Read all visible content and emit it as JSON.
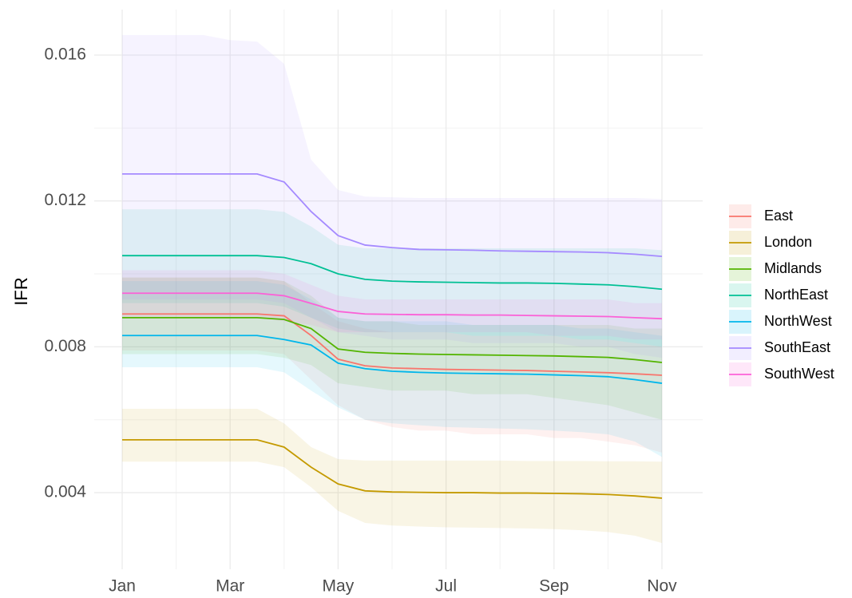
{
  "chart_data": {
    "type": "line",
    "ylabel": "IFR",
    "categories": [
      "Jan",
      null,
      null,
      null,
      "Mar",
      null,
      null,
      null,
      "May",
      null,
      null,
      null,
      "Jul",
      null,
      null,
      null,
      "Sep",
      null,
      null,
      null,
      "Nov"
    ],
    "ylim": [
      0.0019,
      0.0167
    ],
    "yticks": [
      0.004,
      0.008,
      0.012,
      0.016
    ],
    "minor_yticks": [
      0.006,
      0.01,
      0.014
    ],
    "grid": true,
    "legend": "right",
    "series": [
      {
        "name": "East",
        "color": "#F8766D",
        "values": [
          0.0089,
          0.0089,
          0.0089,
          0.0089,
          0.0089,
          0.0089,
          0.00885,
          0.00831,
          0.00766,
          0.00748,
          0.00742,
          0.0074,
          0.00738,
          0.00737,
          0.00736,
          0.00735,
          0.00733,
          0.00731,
          0.00729,
          0.00726,
          0.00722
        ],
        "upper": [
          0.0099,
          0.0099,
          0.0099,
          0.0099,
          0.0099,
          0.0099,
          0.0098,
          0.0092,
          0.0087,
          0.0085,
          0.0084,
          0.0084,
          0.0084,
          0.0083,
          0.0083,
          0.0083,
          0.0083,
          0.0082,
          0.0082,
          0.0081,
          0.008
        ],
        "lower": [
          0.0079,
          0.0079,
          0.0079,
          0.0079,
          0.0079,
          0.0079,
          0.0078,
          0.0071,
          0.0064,
          0.006,
          0.0058,
          0.0057,
          0.0057,
          0.0056,
          0.0056,
          0.0056,
          0.0055,
          0.0055,
          0.0054,
          0.0053,
          0.0051
        ]
      },
      {
        "name": "London",
        "color": "#C49A00",
        "values": [
          0.00545,
          0.00545,
          0.00545,
          0.00545,
          0.00545,
          0.00545,
          0.00525,
          0.0047,
          0.00424,
          0.00405,
          0.00402,
          0.00401,
          0.004,
          0.004,
          0.00399,
          0.00399,
          0.00398,
          0.00397,
          0.00395,
          0.00391,
          0.00385
        ],
        "upper": [
          0.0063,
          0.0063,
          0.0063,
          0.0063,
          0.0063,
          0.0063,
          0.0059,
          0.00525,
          0.00492,
          0.00488,
          0.00488,
          0.00488,
          0.00488,
          0.00488,
          0.00488,
          0.00487,
          0.00487,
          0.00487,
          0.00486,
          0.00486,
          0.00485
        ],
        "lower": [
          0.00485,
          0.00485,
          0.00485,
          0.00485,
          0.00485,
          0.00485,
          0.0047,
          0.00415,
          0.0035,
          0.00317,
          0.0031,
          0.00307,
          0.00305,
          0.00304,
          0.00303,
          0.00302,
          0.003,
          0.00297,
          0.00292,
          0.00282,
          0.00262
        ]
      },
      {
        "name": "Midlands",
        "color": "#53B400",
        "values": [
          0.0088,
          0.0088,
          0.0088,
          0.0088,
          0.0088,
          0.0088,
          0.00875,
          0.0085,
          0.00794,
          0.00785,
          0.00782,
          0.0078,
          0.00779,
          0.00778,
          0.00777,
          0.00776,
          0.00775,
          0.00773,
          0.00771,
          0.00765,
          0.00757
        ],
        "upper": [
          0.0099,
          0.0099,
          0.0099,
          0.0099,
          0.0099,
          0.0099,
          0.0098,
          0.0094,
          0.0088,
          0.0087,
          0.0087,
          0.0086,
          0.0086,
          0.0086,
          0.0086,
          0.0086,
          0.0086,
          0.0086,
          0.0086,
          0.0085,
          0.0085
        ],
        "lower": [
          0.0078,
          0.0078,
          0.0078,
          0.0078,
          0.0078,
          0.0078,
          0.0077,
          0.0075,
          0.007,
          0.0069,
          0.0068,
          0.0068,
          0.0068,
          0.0067,
          0.0067,
          0.0067,
          0.0066,
          0.0065,
          0.0064,
          0.0062,
          0.006
        ]
      },
      {
        "name": "NorthEast",
        "color": "#00C094",
        "values": [
          0.0105,
          0.0105,
          0.0105,
          0.0105,
          0.0105,
          0.0105,
          0.01045,
          0.01028,
          0.01,
          0.00985,
          0.0098,
          0.00978,
          0.00977,
          0.00976,
          0.00975,
          0.00975,
          0.00974,
          0.00972,
          0.0097,
          0.00965,
          0.00958
        ],
        "upper": [
          0.01177,
          0.01177,
          0.01177,
          0.01177,
          0.01177,
          0.01177,
          0.0117,
          0.0113,
          0.0108,
          0.0107,
          0.0107,
          0.0107,
          0.0107,
          0.0107,
          0.0107,
          0.0107,
          0.0107,
          0.0107,
          0.0107,
          0.0107,
          0.01065
        ],
        "lower": [
          0.0092,
          0.0092,
          0.0092,
          0.0092,
          0.0092,
          0.0092,
          0.0091,
          0.0088,
          0.0085,
          0.0084,
          0.0084,
          0.0084,
          0.0084,
          0.0083,
          0.0083,
          0.0083,
          0.0083,
          0.0082,
          0.0082,
          0.0081,
          0.008
        ]
      },
      {
        "name": "NorthWest",
        "color": "#00B6EB",
        "values": [
          0.00831,
          0.00831,
          0.00831,
          0.00831,
          0.00831,
          0.00831,
          0.0082,
          0.00805,
          0.00755,
          0.0074,
          0.00733,
          0.0073,
          0.00728,
          0.00727,
          0.00726,
          0.00725,
          0.00723,
          0.00721,
          0.00718,
          0.0071,
          0.007
        ],
        "upper": [
          0.0098,
          0.0098,
          0.0098,
          0.0098,
          0.0098,
          0.0098,
          0.0097,
          0.0093,
          0.0088,
          0.0087,
          0.0087,
          0.0087,
          0.0087,
          0.0086,
          0.0086,
          0.0086,
          0.0086,
          0.0085,
          0.0085,
          0.0084,
          0.0083
        ],
        "lower": [
          0.00744,
          0.00744,
          0.00744,
          0.00744,
          0.00744,
          0.00744,
          0.0073,
          0.0068,
          0.00634,
          0.006,
          0.0059,
          0.00585,
          0.0058,
          0.00578,
          0.00576,
          0.00574,
          0.0057,
          0.00566,
          0.0056,
          0.0054,
          0.00498
        ]
      },
      {
        "name": "SouthEast",
        "color": "#A58AFF",
        "values": [
          0.01274,
          0.01274,
          0.01274,
          0.01274,
          0.01274,
          0.01274,
          0.01252,
          0.01171,
          0.01105,
          0.01079,
          0.01072,
          0.01067,
          0.01066,
          0.01065,
          0.01063,
          0.01062,
          0.01061,
          0.0106,
          0.01058,
          0.01054,
          0.01048
        ],
        "upper": [
          0.01655,
          0.01655,
          0.01655,
          0.01655,
          0.01641,
          0.01637,
          0.01576,
          0.01313,
          0.0123,
          0.01212,
          0.0121,
          0.01208,
          0.01208,
          0.01208,
          0.01208,
          0.01208,
          0.01208,
          0.01208,
          0.01208,
          0.01208,
          0.01205
        ],
        "lower": [
          0.0093,
          0.0093,
          0.0093,
          0.0093,
          0.0093,
          0.0093,
          0.0092,
          0.0088,
          0.0084,
          0.0083,
          0.0082,
          0.0082,
          0.0082,
          0.0081,
          0.0081,
          0.0081,
          0.0081,
          0.008,
          0.008,
          0.0078,
          0.0077
        ]
      },
      {
        "name": "SouthWest",
        "color": "#FB61D7",
        "values": [
          0.00947,
          0.00947,
          0.00947,
          0.00947,
          0.00947,
          0.00947,
          0.0094,
          0.00919,
          0.00897,
          0.0089,
          0.00889,
          0.00888,
          0.00888,
          0.00887,
          0.00887,
          0.00886,
          0.00885,
          0.00884,
          0.00883,
          0.0088,
          0.00877
        ],
        "upper": [
          0.0101,
          0.0101,
          0.0101,
          0.0101,
          0.0101,
          0.0101,
          0.01,
          0.0097,
          0.0094,
          0.0093,
          0.0093,
          0.0093,
          0.0093,
          0.0093,
          0.0093,
          0.0093,
          0.0093,
          0.0093,
          0.0093,
          0.0092,
          0.0092
        ],
        "lower": [
          0.0088,
          0.0088,
          0.0088,
          0.0088,
          0.0088,
          0.0088,
          0.0087,
          0.0086,
          0.0084,
          0.0084,
          0.0084,
          0.0084,
          0.0084,
          0.0084,
          0.0084,
          0.0084,
          0.0083,
          0.0083,
          0.0083,
          0.0082,
          0.0082
        ]
      }
    ]
  }
}
